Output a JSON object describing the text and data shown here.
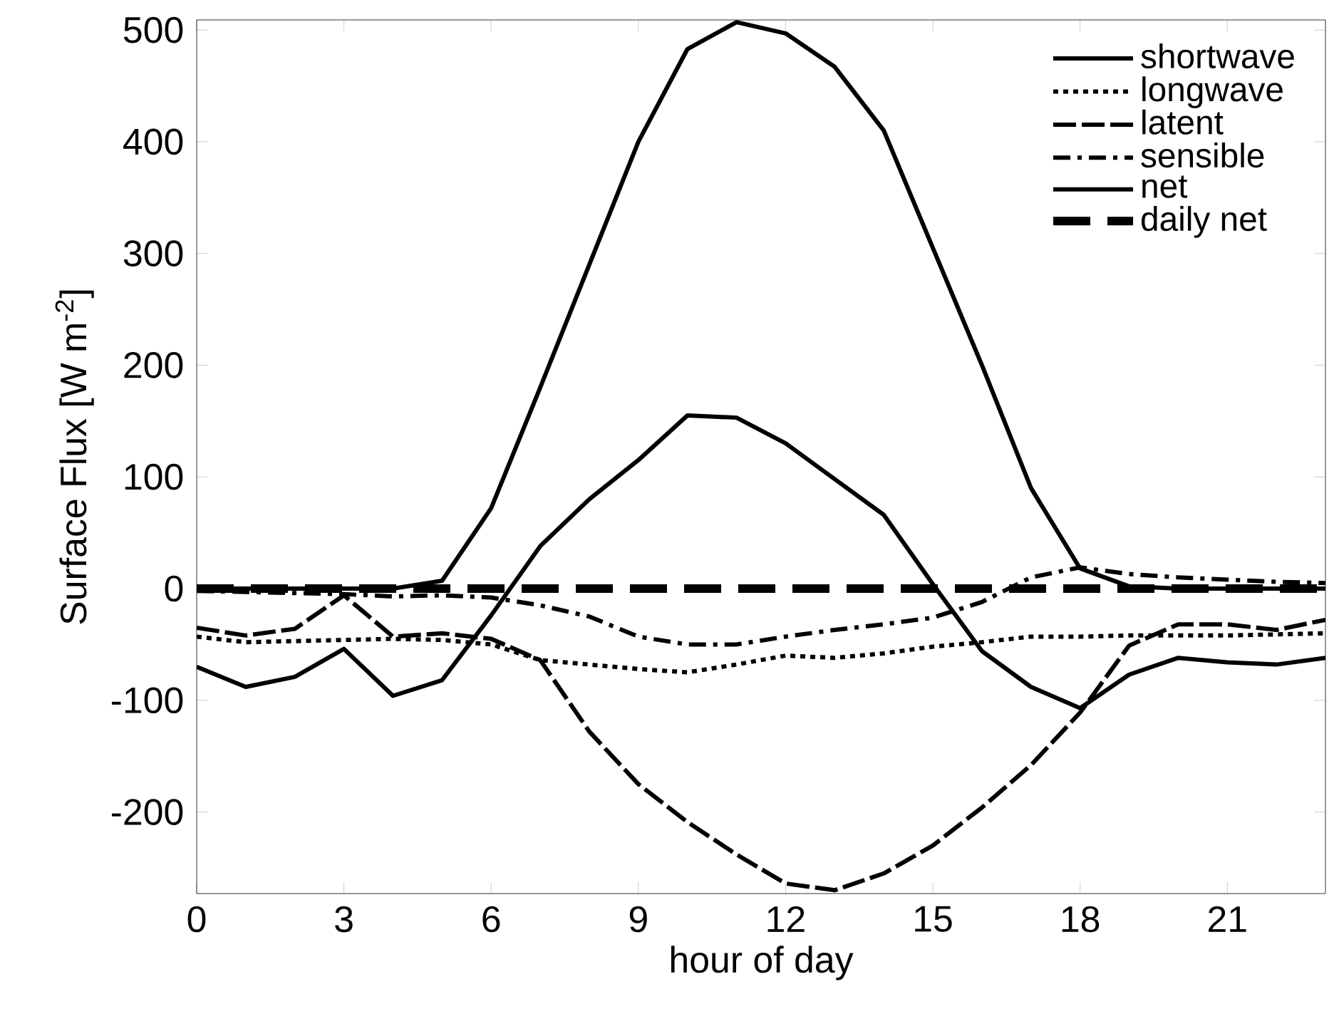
{
  "chart_data": {
    "type": "line",
    "xlabel": "hour of day",
    "ylabel": "Surface Flux [W m$^{-2}$]",
    "x": [
      0,
      1,
      2,
      3,
      4,
      5,
      6,
      7,
      8,
      9,
      10,
      11,
      12,
      13,
      14,
      15,
      16,
      17,
      18,
      19,
      20,
      21,
      22,
      23
    ],
    "xlim": [
      0,
      23
    ],
    "ylim": [
      -273,
      509
    ],
    "xticks": [
      0,
      3,
      6,
      9,
      12,
      15,
      18,
      21
    ],
    "yticks": [
      -200,
      -100,
      0,
      100,
      200,
      300,
      400,
      500
    ],
    "grid": false,
    "legend": "top right",
    "series": [
      {
        "name": "shortwave",
        "color": "#000000",
        "line_style": "solid",
        "values": [
          0,
          0,
          0,
          0,
          0,
          7,
          72,
          180,
          290,
          400,
          483,
          507,
          497,
          467,
          410,
          305,
          200,
          90,
          18,
          2,
          0,
          0,
          0,
          0
        ]
      },
      {
        "name": "longwave",
        "color": "#000000",
        "line_style": "dotted",
        "values": [
          -43,
          -48,
          -47,
          -46,
          -45,
          -46,
          -50,
          -64,
          -68,
          -72,
          -75,
          -68,
          -60,
          -62,
          -58,
          -52,
          -48,
          -43,
          -43,
          -42,
          -42,
          -42,
          -41,
          -40
        ]
      },
      {
        "name": "latent",
        "color": "#000000",
        "line_style": "dashed",
        "values": [
          -35,
          -42,
          -36,
          -6,
          -43,
          -40,
          -45,
          -64,
          -128,
          -175,
          -209,
          -238,
          -264,
          -270,
          -255,
          -230,
          -196,
          -158,
          -111,
          -51,
          -32,
          -32,
          -37,
          -28
        ]
      },
      {
        "name": "sensible",
        "color": "#000000",
        "line_style": "dashdot",
        "values": [
          -2,
          -3,
          -4,
          -5,
          -7,
          -6,
          -8,
          -15,
          -25,
          -43,
          -50,
          -50,
          -43,
          -37,
          -32,
          -26,
          -12,
          10,
          19,
          13,
          10,
          8,
          6,
          5
        ]
      },
      {
        "name": "net",
        "color": "#000000",
        "line_style": "solid",
        "values": [
          -70,
          -88,
          -79,
          -54,
          -96,
          -82,
          -24,
          38,
          80,
          115,
          155,
          153,
          130,
          98,
          66,
          4,
          -56,
          -88,
          -107,
          -77,
          -62,
          -66,
          -68,
          -62
        ]
      }
    ],
    "ref_lines": [
      {
        "axis": "y",
        "value": 0,
        "label": "daily net",
        "color": "#000000",
        "line_style": "dashed"
      }
    ]
  }
}
